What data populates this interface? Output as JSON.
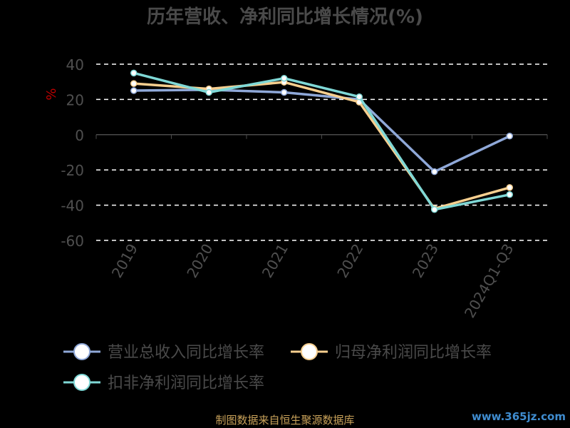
{
  "chart_data": {
    "type": "line",
    "title": "历年营收、净利同比增长情况(%)",
    "ylabel": "%",
    "ylim": [
      -60,
      40
    ],
    "yticks": [
      40,
      20,
      0,
      -20,
      -40,
      -60
    ],
    "categories": [
      "2019",
      "2020",
      "2021",
      "2022",
      "2023",
      "2024Q1-Q3"
    ],
    "grid": true,
    "legend": "bottom",
    "series": [
      {
        "name": "营业总收入同比增长率",
        "color": "#8fa8d8",
        "values": [
          25,
          25.5,
          24,
          20,
          -21,
          -0.8
        ]
      },
      {
        "name": "归母净利润同比增长率",
        "color": "#f7cf8f",
        "values": [
          29,
          26,
          29.8,
          18.5,
          -42,
          -30
        ]
      },
      {
        "name": "扣非净利润同比增长率",
        "color": "#7fd8d6",
        "values": [
          35,
          24,
          32,
          21.5,
          -42.5,
          -34
        ]
      }
    ]
  },
  "footer": "制图数据来自恒生聚源数据库",
  "watermark": "www.365jz.com"
}
